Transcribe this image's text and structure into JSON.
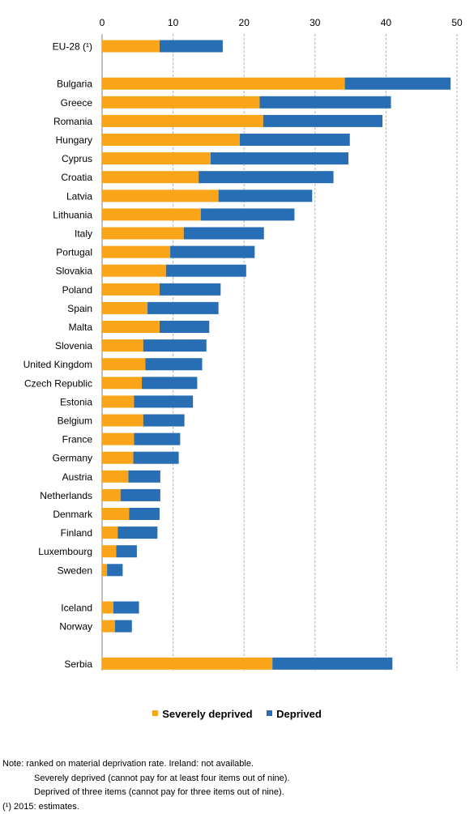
{
  "chart_data": {
    "type": "bar",
    "orientation": "horizontal",
    "stacked": true,
    "xlim": [
      0,
      50
    ],
    "x_ticks": [
      "0",
      "10",
      "20",
      "30",
      "40",
      "50"
    ],
    "grid": true,
    "legend_position": "bottom",
    "categories": [
      "EU-28 (¹)",
      "Bulgaria",
      "Greece",
      "Romania",
      "Hungary",
      "Cyprus",
      "Croatia",
      "Latvia",
      "Lithuania",
      "Italy",
      "Portugal",
      "Slovakia",
      "Poland",
      "Spain",
      "Malta",
      "Slovenia",
      "United Kingdom",
      "Czech Republic",
      "Estonia",
      "Belgium",
      "France",
      "Germany",
      "Austria",
      "Netherlands",
      "Denmark",
      "Finland",
      "Luxembourg",
      "Sweden",
      "Iceland",
      "Norway",
      "Serbia"
    ],
    "groups_after_index": [
      0,
      27,
      29
    ],
    "series": [
      {
        "name": "Severely deprived",
        "color": "#FAA519",
        "values": [
          8.1,
          34.2,
          22.2,
          22.7,
          19.4,
          15.3,
          13.6,
          16.4,
          13.9,
          11.5,
          9.6,
          9.0,
          8.1,
          6.4,
          8.1,
          5.8,
          6.1,
          5.6,
          4.5,
          5.8,
          4.5,
          4.4,
          3.7,
          2.6,
          3.8,
          2.2,
          2.0,
          0.7,
          1.6,
          1.8,
          24.0
        ]
      },
      {
        "name": "Deprived",
        "color": "#286EB4",
        "values": [
          8.9,
          14.9,
          18.5,
          16.8,
          15.5,
          19.4,
          19.0,
          13.2,
          13.2,
          11.3,
          11.9,
          11.3,
          8.6,
          10.0,
          7.0,
          8.9,
          8.0,
          7.8,
          8.3,
          5.8,
          6.5,
          6.4,
          4.5,
          5.6,
          4.3,
          5.6,
          2.9,
          2.2,
          3.6,
          2.4,
          16.9
        ]
      }
    ]
  },
  "notes": {
    "label": "Note:",
    "line1": "ranked on material deprivation rate.  Ireland: not available.",
    "line2": "Severely deprived (cannot pay for at least four items out of nine).",
    "line3": "Deprived of three items (cannot pay for three items out of nine).",
    "line4": "(¹) 2015: estimates."
  }
}
